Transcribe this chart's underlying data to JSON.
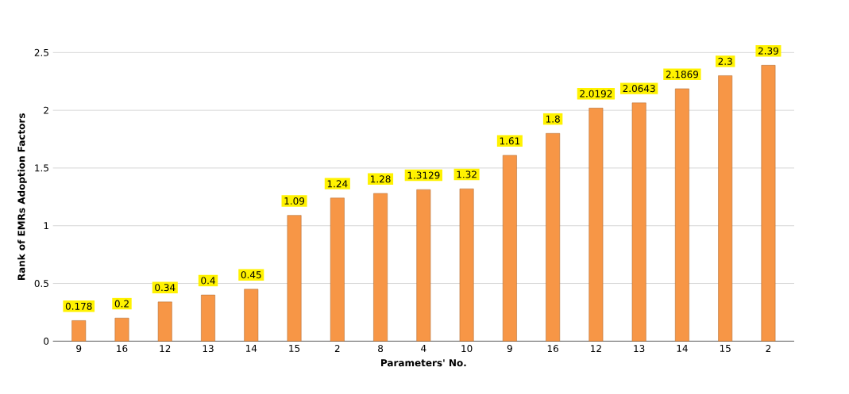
{
  "chart_data": {
    "type": "bar",
    "xlabel": "Parameters' No.",
    "ylabel": "Rank of EMRs Adoption Factors",
    "categories": [
      "9",
      "16",
      "12",
      "13",
      "14",
      "15",
      "2",
      "8",
      "4",
      "10",
      "9",
      "16",
      "12",
      "13",
      "14",
      "15",
      "2"
    ],
    "values": [
      0.178,
      0.2,
      0.34,
      0.4,
      0.45,
      1.09,
      1.24,
      1.28,
      1.3129,
      1.32,
      1.61,
      1.8,
      2.0192,
      2.0643,
      2.1869,
      2.3,
      2.39
    ],
    "color": "#f79646",
    "ylim": [
      0,
      2.5
    ],
    "yticks": [
      0,
      0.5,
      1,
      1.5,
      2,
      2.5
    ],
    "grid": "y",
    "data_labels": true
  }
}
